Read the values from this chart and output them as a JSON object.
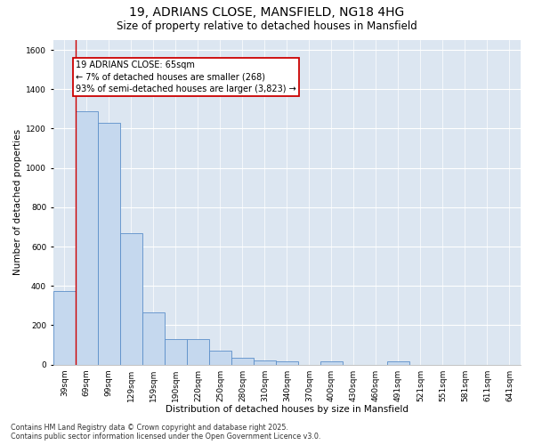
{
  "title1": "19, ADRIANS CLOSE, MANSFIELD, NG18 4HG",
  "title2": "Size of property relative to detached houses in Mansfield",
  "xlabel": "Distribution of detached houses by size in Mansfield",
  "ylabel": "Number of detached properties",
  "categories": [
    "39sqm",
    "69sqm",
    "99sqm",
    "129sqm",
    "159sqm",
    "190sqm",
    "220sqm",
    "250sqm",
    "280sqm",
    "310sqm",
    "340sqm",
    "370sqm",
    "400sqm",
    "430sqm",
    "460sqm",
    "491sqm",
    "521sqm",
    "551sqm",
    "581sqm",
    "611sqm",
    "641sqm"
  ],
  "values": [
    375,
    1290,
    1230,
    670,
    265,
    128,
    128,
    70,
    33,
    20,
    15,
    0,
    15,
    0,
    0,
    15,
    0,
    0,
    0,
    0,
    0
  ],
  "bar_color": "#c5d8ee",
  "bar_edge_color": "#5b8fc9",
  "background_color": "#dce6f1",
  "grid_color": "#ffffff",
  "annotation_line1": "19 ADRIANS CLOSE: 65sqm",
  "annotation_line2": "← 7% of detached houses are smaller (268)",
  "annotation_line3": "93% of semi-detached houses are larger (3,823) →",
  "annotation_box_color": "#ffffff",
  "annotation_box_edge": "#cc0000",
  "ylim": [
    0,
    1650
  ],
  "yticks": [
    0,
    200,
    400,
    600,
    800,
    1000,
    1200,
    1400,
    1600
  ],
  "footer": "Contains HM Land Registry data © Crown copyright and database right 2025.\nContains public sector information licensed under the Open Government Licence v3.0.",
  "title_fontsize": 10,
  "subtitle_fontsize": 8.5,
  "label_fontsize": 7.5,
  "tick_fontsize": 6.5,
  "annotation_fontsize": 7,
  "footer_fontsize": 5.8
}
